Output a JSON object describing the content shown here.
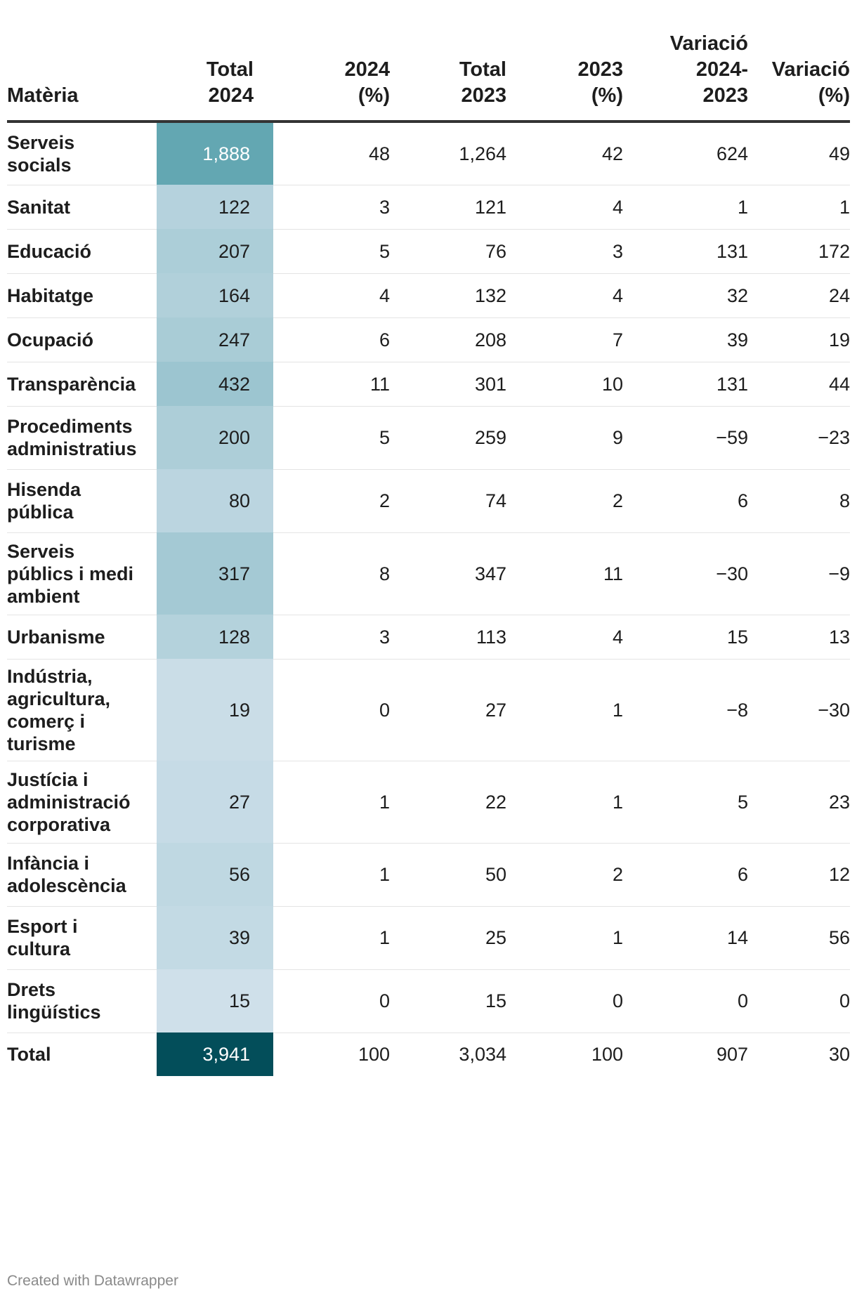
{
  "table": {
    "columns": [
      "Matèria",
      "Total 2024",
      "2024 (%)",
      "Total 2023",
      "2023 (%)",
      "Variació 2024-2023",
      "Variació (%)"
    ],
    "header_lines": [
      [
        "Matèria"
      ],
      [
        "Total",
        "2024"
      ],
      [
        "2024",
        "(%)"
      ],
      [
        "Total",
        "2023"
      ],
      [
        "2023",
        "(%)"
      ],
      [
        "Variació",
        "2024-",
        "2023"
      ],
      [
        "Variació",
        "(%)"
      ]
    ],
    "heatmap_colors": {
      "low": "#cfe0ea",
      "high": "#63a7b2",
      "total": "#034e5a"
    }
  },
  "chart_data": {
    "type": "table",
    "columns": [
      "Matèria",
      "Total 2024",
      "2024 (%)",
      "Total 2023",
      "2023 (%)",
      "Variació 2024-2023",
      "Variació (%)"
    ],
    "rows": [
      {
        "name": "Serveis socials",
        "name_lines": [
          "Serveis",
          "socials"
        ],
        "values": [
          "1,888",
          "48",
          "1,264",
          "42",
          "624",
          "49"
        ],
        "heat": 1888
      },
      {
        "name": "Sanitat",
        "name_lines": [
          "Sanitat"
        ],
        "values": [
          "122",
          "3",
          "121",
          "4",
          "1",
          "1"
        ],
        "heat": 122
      },
      {
        "name": "Educació",
        "name_lines": [
          "Educació"
        ],
        "values": [
          "207",
          "5",
          "76",
          "3",
          "131",
          "172"
        ],
        "heat": 207
      },
      {
        "name": "Habitatge",
        "name_lines": [
          "Habitatge"
        ],
        "values": [
          "164",
          "4",
          "132",
          "4",
          "32",
          "24"
        ],
        "heat": 164
      },
      {
        "name": "Ocupació",
        "name_lines": [
          "Ocupació"
        ],
        "values": [
          "247",
          "6",
          "208",
          "7",
          "39",
          "19"
        ],
        "heat": 247
      },
      {
        "name": "Transparència",
        "name_lines": [
          "Transparència"
        ],
        "values": [
          "432",
          "11",
          "301",
          "10",
          "131",
          "44"
        ],
        "heat": 432
      },
      {
        "name": "Procediments administratius",
        "name_lines": [
          "Procediments",
          "administratius"
        ],
        "values": [
          "200",
          "5",
          "259",
          "9",
          "−59",
          "−23"
        ],
        "heat": 200
      },
      {
        "name": "Hisenda pública",
        "name_lines": [
          "Hisenda",
          "pública"
        ],
        "values": [
          "80",
          "2",
          "74",
          "2",
          "6",
          "8"
        ],
        "heat": 80
      },
      {
        "name": "Serveis públics i medi ambient",
        "name_lines": [
          "Serveis",
          "públics i medi",
          "ambient"
        ],
        "values": [
          "317",
          "8",
          "347",
          "11",
          "−30",
          "−9"
        ],
        "heat": 317
      },
      {
        "name": "Urbanisme",
        "name_lines": [
          "Urbanisme"
        ],
        "values": [
          "128",
          "3",
          "113",
          "4",
          "15",
          "13"
        ],
        "heat": 128
      },
      {
        "name": "Indústria, agricultura, comerç i turisme",
        "name_lines": [
          "Indústria,",
          "agricultura,",
          "comerç i",
          "turisme"
        ],
        "values": [
          "19",
          "0",
          "27",
          "1",
          "−8",
          "−30"
        ],
        "heat": 19
      },
      {
        "name": "Justícia i administració corporativa",
        "name_lines": [
          "Justícia i",
          "administració",
          "corporativa"
        ],
        "values": [
          "27",
          "1",
          "22",
          "1",
          "5",
          "23"
        ],
        "heat": 27
      },
      {
        "name": "Infància i adolescència",
        "name_lines": [
          "Infància i",
          "adolescència"
        ],
        "values": [
          "56",
          "1",
          "50",
          "2",
          "6",
          "12"
        ],
        "heat": 56
      },
      {
        "name": "Esport i cultura",
        "name_lines": [
          "Esport i",
          "cultura"
        ],
        "values": [
          "39",
          "1",
          "25",
          "1",
          "14",
          "56"
        ],
        "heat": 39
      },
      {
        "name": "Drets lingüístics",
        "name_lines": [
          "Drets",
          "lingüístics"
        ],
        "values": [
          "15",
          "0",
          "15",
          "0",
          "0",
          "0"
        ],
        "heat": 15
      },
      {
        "name": "Total",
        "name_lines": [
          "Total"
        ],
        "values": [
          "3,941",
          "100",
          "3,034",
          "100",
          "907",
          "30"
        ],
        "heat": 3941,
        "is_total": true
      }
    ]
  },
  "footer": {
    "credit": "Created with Datawrapper"
  }
}
